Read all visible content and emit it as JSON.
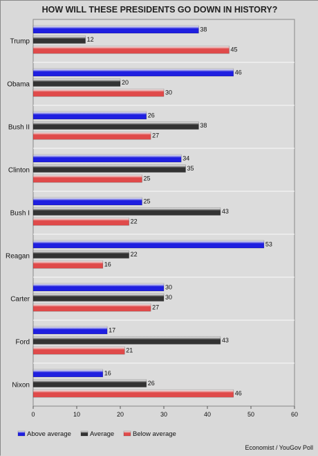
{
  "chart_data": {
    "type": "bar",
    "orientation": "horizontal",
    "title": "HOW WILL THESE PRESIDENTS GO DOWN IN HISTORY?",
    "categories": [
      "Trump",
      "Obama",
      "Bush II",
      "Clinton",
      "Bush I",
      "Reagan",
      "Carter",
      "Ford",
      "Nixon"
    ],
    "series": [
      {
        "name": "Above average",
        "color": "#1f1fe0",
        "values": [
          38,
          46,
          26,
          34,
          25,
          53,
          30,
          17,
          16
        ]
      },
      {
        "name": "Average",
        "color": "#333333",
        "values": [
          12,
          20,
          38,
          35,
          43,
          22,
          30,
          43,
          26
        ]
      },
      {
        "name": "Below average",
        "color": "#e04a4a",
        "values": [
          45,
          30,
          27,
          25,
          22,
          16,
          27,
          21,
          46
        ]
      }
    ],
    "xlim": [
      0,
      60
    ],
    "xticks": [
      0,
      10,
      20,
      30,
      40,
      50,
      60
    ],
    "grid": true,
    "legend_position": "bottom-left",
    "source": "Economist / YouGov Poll"
  }
}
